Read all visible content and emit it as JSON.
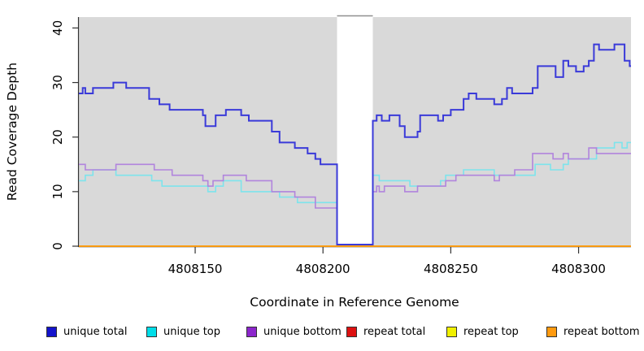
{
  "chart_data": {
    "type": "line",
    "line_style": "step",
    "title": "",
    "xlabel": "Coordinate in Reference Genome",
    "ylabel": "Read Coverage Depth",
    "xlim": [
      4808104.5,
      4808320.5
    ],
    "ylim": [
      0,
      42
    ],
    "x_ticks": [
      4808150,
      4808200,
      4808250,
      4808300
    ],
    "y_ticks": [
      0,
      10,
      20,
      30,
      40
    ],
    "panel_bg": "#d9d9d9",
    "axis_color": "#333333",
    "masked_region": {
      "from": 4808205.5,
      "to": 4808219.5,
      "fill": "#ffffff",
      "border": "#8f8f8f"
    },
    "legend_position": "bottom",
    "grid": false,
    "series": [
      {
        "name": "unique total",
        "color": "#1414cc",
        "line_color": "#3a3ad9",
        "width": 2,
        "zero_offset": true,
        "steps": [
          [
            4808104.5,
            28
          ],
          [
            4808106,
            29
          ],
          [
            4808107,
            28
          ],
          [
            4808110,
            29
          ],
          [
            4808118,
            30
          ],
          [
            4808123,
            29
          ],
          [
            4808132,
            27
          ],
          [
            4808136,
            26
          ],
          [
            4808140,
            25
          ],
          [
            4808153,
            24
          ],
          [
            4808154,
            22
          ],
          [
            4808158,
            24
          ],
          [
            4808162,
            25
          ],
          [
            4808168,
            24
          ],
          [
            4808171,
            23
          ],
          [
            4808180,
            21
          ],
          [
            4808183,
            19
          ],
          [
            4808189,
            18
          ],
          [
            4808194,
            17
          ],
          [
            4808197,
            16
          ],
          [
            4808199,
            15
          ],
          [
            4808205.5,
            0
          ],
          [
            4808219.5,
            23
          ],
          [
            4808221,
            24
          ],
          [
            4808223,
            23
          ],
          [
            4808226,
            24
          ],
          [
            4808230,
            22
          ],
          [
            4808232,
            20
          ],
          [
            4808237,
            21
          ],
          [
            4808238,
            24
          ],
          [
            4808245,
            23
          ],
          [
            4808247,
            24
          ],
          [
            4808250,
            25
          ],
          [
            4808255,
            27
          ],
          [
            4808257,
            28
          ],
          [
            4808260,
            27
          ],
          [
            4808267,
            26
          ],
          [
            4808270,
            27
          ],
          [
            4808272,
            29
          ],
          [
            4808274,
            28
          ],
          [
            4808282,
            29
          ],
          [
            4808284,
            33
          ],
          [
            4808291,
            31
          ],
          [
            4808294,
            34
          ],
          [
            4808296,
            33
          ],
          [
            4808299,
            32
          ],
          [
            4808302,
            33
          ],
          [
            4808304,
            34
          ],
          [
            4808306,
            37
          ],
          [
            4808308,
            36
          ],
          [
            4808314,
            37
          ],
          [
            4808318,
            34
          ],
          [
            4808320,
            33
          ]
        ]
      },
      {
        "name": "unique top",
        "color": "#00dde8",
        "line_color": "#7de4ec",
        "width": 1.6,
        "zero_offset": true,
        "steps": [
          [
            4808104.5,
            12
          ],
          [
            4808107,
            13
          ],
          [
            4808110,
            14
          ],
          [
            4808119,
            13
          ],
          [
            4808133,
            12
          ],
          [
            4808137,
            11
          ],
          [
            4808155,
            10
          ],
          [
            4808158,
            11
          ],
          [
            4808161,
            12
          ],
          [
            4808168,
            10
          ],
          [
            4808183,
            9
          ],
          [
            4808190,
            8
          ],
          [
            4808205.5,
            0
          ],
          [
            4808219.5,
            13
          ],
          [
            4808222,
            12
          ],
          [
            4808234,
            11
          ],
          [
            4808246,
            12
          ],
          [
            4808248,
            13
          ],
          [
            4808255,
            14
          ],
          [
            4808267,
            13
          ],
          [
            4808283,
            15
          ],
          [
            4808289,
            14
          ],
          [
            4808294,
            15
          ],
          [
            4808296,
            16
          ],
          [
            4808307,
            18
          ],
          [
            4808314,
            19
          ],
          [
            4808317,
            18
          ],
          [
            4808319,
            19
          ]
        ]
      },
      {
        "name": "unique bottom",
        "color": "#8c26cc",
        "line_color": "#b184dd",
        "width": 1.6,
        "zero_offset": true,
        "steps": [
          [
            4808104.5,
            15
          ],
          [
            4808107,
            14
          ],
          [
            4808119,
            15
          ],
          [
            4808134,
            14
          ],
          [
            4808141,
            13
          ],
          [
            4808153,
            12
          ],
          [
            4808155,
            11
          ],
          [
            4808157,
            12
          ],
          [
            4808161,
            13
          ],
          [
            4808170,
            12
          ],
          [
            4808180,
            10
          ],
          [
            4808189,
            9
          ],
          [
            4808197,
            7
          ],
          [
            4808205.5,
            0
          ],
          [
            4808219.5,
            10
          ],
          [
            4808221,
            11
          ],
          [
            4808222,
            10
          ],
          [
            4808224,
            11
          ],
          [
            4808232,
            10
          ],
          [
            4808237,
            11
          ],
          [
            4808248,
            12
          ],
          [
            4808252,
            13
          ],
          [
            4808267,
            12
          ],
          [
            4808269,
            13
          ],
          [
            4808275,
            14
          ],
          [
            4808282,
            17
          ],
          [
            4808290,
            16
          ],
          [
            4808294,
            17
          ],
          [
            4808296,
            16
          ],
          [
            4808304,
            18
          ],
          [
            4808307,
            17
          ]
        ]
      },
      {
        "name": "repeat total",
        "color": "#dd1111",
        "line_color": "#dd1111",
        "width": 1.6,
        "zero_offset": false,
        "steps": [
          [
            4808104.5,
            0
          ]
        ]
      },
      {
        "name": "repeat top",
        "color": "#f0f000",
        "line_color": "#f0f000",
        "width": 1.6,
        "zero_offset": false,
        "steps": [
          [
            4808104.5,
            0
          ]
        ]
      },
      {
        "name": "repeat bottom",
        "color": "#ff9a0f",
        "line_color": "#ff9a0f",
        "width": 1.8,
        "zero_offset": false,
        "steps": [
          [
            4808104.5,
            0
          ]
        ]
      }
    ]
  }
}
